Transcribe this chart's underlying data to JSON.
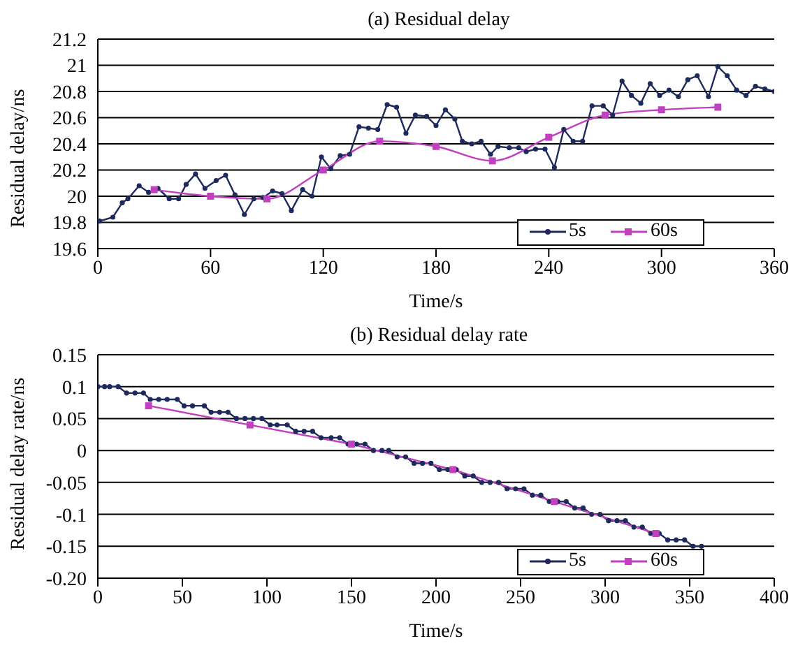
{
  "chart_data": [
    {
      "type": "line",
      "title": "(a) Residual delay",
      "xlabel": "Time/s",
      "ylabel": "Residual delay/ns",
      "xlim": [
        0,
        360
      ],
      "xticks": [
        0,
        60,
        120,
        180,
        240,
        300,
        360
      ],
      "ylim": [
        19.6,
        21.2
      ],
      "yticks": [
        19.6,
        19.8,
        20,
        20.2,
        20.4,
        20.6,
        20.8,
        21,
        21.2
      ],
      "grid": "y",
      "legend": "bottom right",
      "series": [
        {
          "name": "5s",
          "color": "#1f2a5c",
          "marker": "circle",
          "x": [
            1,
            8,
            13,
            16,
            22,
            27,
            32,
            38,
            43,
            47,
            52,
            57,
            63,
            68,
            73,
            78,
            83,
            88,
            93,
            98,
            103,
            109,
            114,
            119,
            124,
            129,
            134,
            139,
            144,
            149,
            154,
            159,
            164,
            169,
            175,
            180,
            185,
            190,
            194,
            199,
            204,
            209,
            213,
            219,
            224,
            228,
            233,
            238,
            243,
            248,
            253,
            258,
            263,
            269,
            274,
            279,
            284,
            289,
            294,
            299,
            304,
            309,
            314,
            319,
            325,
            330,
            335,
            340,
            345,
            350,
            355,
            360
          ],
          "values": [
            19.81,
            19.84,
            19.95,
            19.98,
            20.08,
            20.03,
            20.06,
            19.98,
            19.98,
            20.09,
            20.17,
            20.06,
            20.12,
            20.16,
            20.01,
            19.86,
            19.98,
            19.99,
            20.04,
            20.02,
            19.89,
            20.05,
            20.0,
            20.3,
            20.21,
            20.31,
            20.32,
            20.53,
            20.52,
            20.51,
            20.7,
            20.68,
            20.48,
            20.62,
            20.61,
            20.54,
            20.66,
            20.59,
            20.42,
            20.4,
            20.42,
            20.32,
            20.38,
            20.37,
            20.37,
            20.34,
            20.36,
            20.36,
            20.22,
            20.51,
            20.42,
            20.42,
            20.69,
            20.69,
            20.62,
            20.88,
            20.77,
            20.71,
            20.86,
            20.77,
            20.81,
            20.76,
            20.89,
            20.92,
            20.76,
            20.99,
            20.92,
            20.81,
            20.77,
            20.84,
            20.82,
            20.8
          ]
        },
        {
          "name": "60s",
          "color": "#c040c0",
          "marker": "square",
          "x": [
            30,
            60,
            90,
            120,
            150,
            180,
            210,
            240,
            270,
            300,
            330
          ],
          "values": [
            20.05,
            20.0,
            19.98,
            20.2,
            20.42,
            20.38,
            20.27,
            20.45,
            20.62,
            20.66,
            20.68
          ]
        }
      ]
    },
    {
      "type": "line",
      "title": "(b) Residual delay rate",
      "xlabel": "Time/s",
      "ylabel": "Residual delay rate/ns",
      "xlim": [
        0,
        400
      ],
      "xticks": [
        0,
        50,
        100,
        150,
        200,
        250,
        300,
        350,
        400
      ],
      "ylim": [
        -0.2,
        0.15
      ],
      "yticks": [
        0.15,
        0.1,
        0.05,
        0,
        -0.05,
        -0.1,
        -0.15,
        {
          "value": -0.2,
          "label": "-0.20"
        }
      ],
      "grid": "y",
      "legend": "bottom right",
      "series": [
        {
          "name": "5s",
          "color": "#1f2a5c",
          "marker": "circle",
          "x": [
            0,
            4,
            7,
            12,
            17,
            22,
            27,
            31,
            36,
            41,
            47,
            51,
            56,
            63,
            67,
            72,
            77,
            82,
            87,
            92,
            97,
            102,
            106,
            112,
            117,
            122,
            127,
            132,
            138,
            143,
            148,
            153,
            158,
            163,
            168,
            172,
            177,
            182,
            187,
            192,
            197,
            202,
            207,
            212,
            217,
            222,
            227,
            232,
            237,
            242,
            247,
            252,
            257,
            262,
            267,
            272,
            277,
            282,
            287,
            292,
            297,
            302,
            307,
            312,
            317,
            322,
            327,
            332,
            337,
            342,
            347,
            352,
            357
          ],
          "values": [
            0.1,
            0.1,
            0.1,
            0.1,
            0.09,
            0.09,
            0.09,
            0.08,
            0.08,
            0.08,
            0.08,
            0.07,
            0.07,
            0.07,
            0.06,
            0.06,
            0.06,
            0.05,
            0.05,
            0.05,
            0.05,
            0.04,
            0.04,
            0.04,
            0.03,
            0.03,
            0.03,
            0.02,
            0.02,
            0.02,
            0.01,
            0.01,
            0.01,
            0,
            0,
            0,
            -0.01,
            -0.01,
            -0.02,
            -0.02,
            -0.02,
            -0.03,
            -0.03,
            -0.03,
            -0.04,
            -0.04,
            -0.05,
            -0.05,
            -0.05,
            -0.06,
            -0.06,
            -0.06,
            -0.07,
            -0.07,
            -0.08,
            -0.08,
            -0.08,
            -0.09,
            -0.09,
            -0.1,
            -0.1,
            -0.11,
            -0.11,
            -0.11,
            -0.12,
            -0.12,
            -0.13,
            -0.13,
            -0.14,
            -0.14,
            -0.14,
            -0.15,
            -0.15
          ]
        },
        {
          "name": "60s",
          "color": "#c040c0",
          "marker": "square",
          "x": [
            30,
            90,
            150,
            210,
            270,
            330
          ],
          "values": [
            0.07,
            0.04,
            0.01,
            -0.03,
            -0.08,
            -0.13
          ]
        }
      ]
    }
  ]
}
